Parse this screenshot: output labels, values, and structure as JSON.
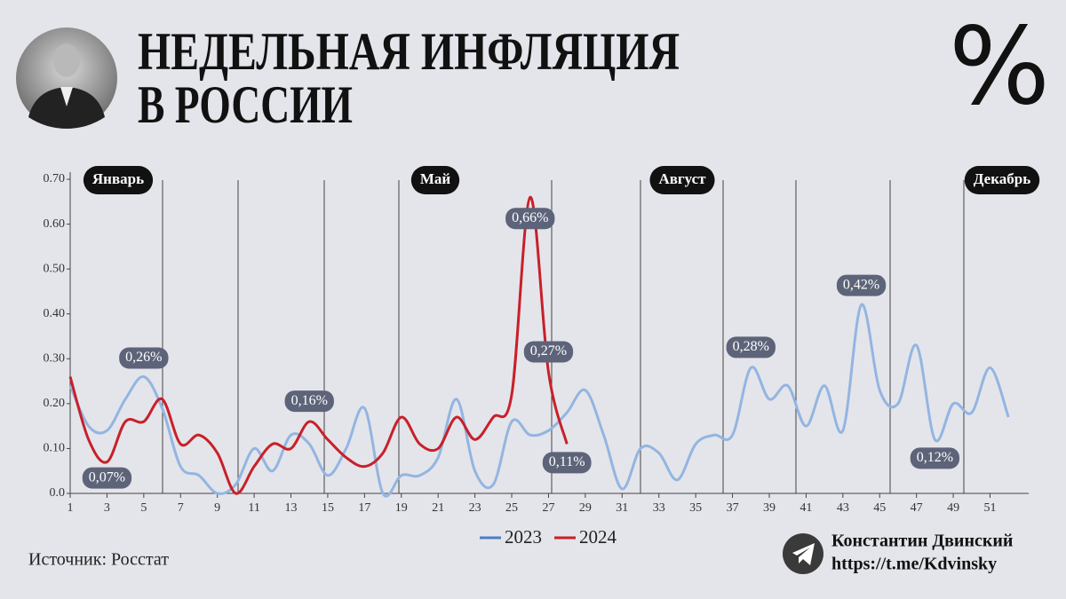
{
  "chart_data": {
    "type": "line",
    "title_lines": [
      "НЕДЕЛЬНАЯ ИНФЛЯЦИЯ",
      "В РОССИИ"
    ],
    "symbol": "%",
    "source": "Источник: Росстат",
    "author": {
      "name": "Константин Двинский",
      "link": "https://t.me/Kdvinsky"
    },
    "month_labels": [
      "Январь",
      "Май",
      "Август",
      "Декабрь"
    ],
    "x": [
      1,
      2,
      3,
      4,
      5,
      6,
      7,
      8,
      9,
      10,
      11,
      12,
      13,
      14,
      15,
      16,
      17,
      18,
      19,
      20,
      21,
      22,
      23,
      24,
      25,
      26,
      27,
      28,
      29,
      30,
      31,
      32,
      33,
      34,
      35,
      36,
      37,
      38,
      39,
      40,
      41,
      42,
      43,
      44,
      45,
      46,
      47,
      48,
      49,
      50,
      51,
      52
    ],
    "series": [
      {
        "name": "2023",
        "color": "#93b5e1",
        "values": [
          0.24,
          0.15,
          0.14,
          0.21,
          0.26,
          0.19,
          0.06,
          0.04,
          0.0,
          0.02,
          0.1,
          0.05,
          0.13,
          0.11,
          0.04,
          0.1,
          0.19,
          0.0,
          0.04,
          0.04,
          0.08,
          0.21,
          0.05,
          0.02,
          0.16,
          0.13,
          0.14,
          0.18,
          0.23,
          0.13,
          0.01,
          0.1,
          0.09,
          0.03,
          0.11,
          0.13,
          0.13,
          0.28,
          0.21,
          0.24,
          0.15,
          0.24,
          0.14,
          0.42,
          0.23,
          0.2,
          0.33,
          0.12,
          0.2,
          0.18,
          0.28,
          0.17
        ],
        "value_labels": [
          null,
          null,
          null,
          null,
          "0,26%",
          null,
          null,
          null,
          null,
          null,
          null,
          null,
          null,
          null,
          null,
          null,
          null,
          null,
          null,
          null,
          null,
          null,
          null,
          null,
          null,
          null,
          null,
          null,
          null,
          null,
          null,
          null,
          null,
          null,
          null,
          null,
          null,
          "0,28%",
          null,
          null,
          null,
          null,
          null,
          "0,42%",
          null,
          null,
          null,
          "0,12%",
          null,
          null,
          null,
          null
        ]
      },
      {
        "name": "2024",
        "color": "#c8202a",
        "values": [
          0.26,
          0.12,
          0.07,
          0.16,
          0.16,
          0.21,
          0.11,
          0.13,
          0.09,
          0.0,
          0.06,
          0.11,
          0.1,
          0.16,
          0.12,
          0.08,
          0.06,
          0.09,
          0.17,
          0.11,
          0.1,
          0.17,
          0.12,
          0.17,
          0.22,
          0.66,
          0.27,
          0.11,
          null,
          null,
          null,
          null,
          null,
          null,
          null,
          null,
          null,
          null,
          null,
          null,
          null,
          null,
          null,
          null,
          null,
          null,
          null,
          null,
          null,
          null,
          null,
          null
        ],
        "value_labels": [
          null,
          null,
          "0,07%",
          null,
          null,
          null,
          null,
          null,
          null,
          null,
          null,
          null,
          null,
          "0,16%",
          null,
          null,
          null,
          null,
          null,
          null,
          null,
          null,
          null,
          null,
          null,
          "0,66%",
          "0,27%",
          "0,11%",
          null,
          null,
          null,
          null,
          null,
          null,
          null,
          null,
          null,
          null,
          null,
          null,
          null,
          null,
          null,
          null,
          null,
          null,
          null,
          null,
          null,
          null,
          null,
          null
        ]
      }
    ],
    "xlim": [
      1,
      53.1
    ],
    "xticks": [
      1,
      3,
      5,
      7,
      9,
      11,
      13,
      15,
      17,
      19,
      21,
      23,
      25,
      27,
      29,
      31,
      33,
      35,
      37,
      39,
      41,
      43,
      45,
      47,
      49,
      51
    ],
    "ylim": [
      0,
      0.7
    ],
    "yticks": [
      {
        "value": 0,
        "label": "0.0"
      },
      {
        "value": 0.1,
        "label": "0.10"
      },
      {
        "value": 0.2,
        "label": "0.20"
      },
      {
        "value": 0.3,
        "label": "0.30"
      },
      {
        "value": 0.4,
        "label": "0.40"
      },
      {
        "value": 0.5,
        "label": "0.50"
      },
      {
        "value": 0.6,
        "label": "0.60"
      },
      {
        "value": 0.7,
        "label": "0.70"
      }
    ],
    "legend": "bottom"
  }
}
